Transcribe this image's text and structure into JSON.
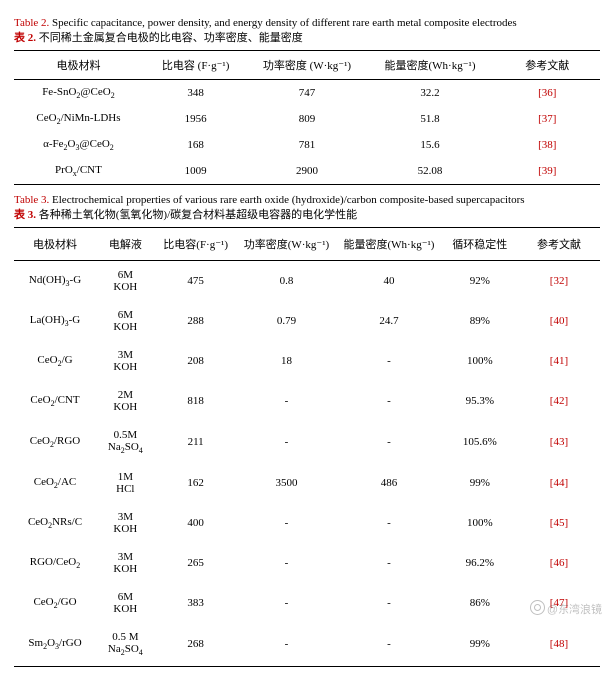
{
  "table2": {
    "caption_en_label": "Table 2.",
    "caption_en": " Specific capacitance, power density, and energy density of different rare earth metal composite electrodes",
    "caption_zh_label": "表 2.",
    "caption_zh": " 不同稀土金属复合电极的比电容、功率密度、能量密度",
    "headers": {
      "material": "电极材料",
      "cap": "比电容 (F·g⁻¹)",
      "power": "功率密度 (W·kg⁻¹)",
      "energy": "能量密度(Wh·kg⁻¹)",
      "ref": "参考文献"
    },
    "rows": [
      {
        "material_html": "Fe-SnO<sub>2</sub>@CeO<sub>2</sub>",
        "cap": "348",
        "power": "747",
        "energy": "32.2",
        "ref": "[36]"
      },
      {
        "material_html": "CeO<sub>2</sub>/NiMn-LDHs",
        "cap": "1956",
        "power": "809",
        "energy": "51.8",
        "ref": "[37]"
      },
      {
        "material_html": "α-Fe<sub>2</sub>O<sub>3</sub>@CeO<sub>2</sub>",
        "cap": "168",
        "power": "781",
        "energy": "15.6",
        "ref": "[38]"
      },
      {
        "material_html": "PrO<sub>x</sub>/CNT",
        "cap": "1009",
        "power": "2900",
        "energy": "52.08",
        "ref": "[39]"
      }
    ]
  },
  "table3": {
    "caption_en_label": "Table 3.",
    "caption_en": " Electrochemical properties of various rare earth oxide (hydroxide)/carbon composite-based supercapacitors",
    "caption_zh_label": "表 3.",
    "caption_zh": " 各种稀土氧化物(氢氧化物)/碳复合材料基超级电容器的电化学性能",
    "headers": {
      "material": "电极材料",
      "electrolyte": "电解液",
      "cap": "比电容(F·g⁻¹)",
      "power": "功率密度(W·kg⁻¹)",
      "energy": "能量密度(Wh·kg⁻¹)",
      "cycle": "循环稳定性",
      "ref": "参考文献"
    },
    "rows": [
      {
        "material_html": "Nd(OH)<sub>3</sub>-G",
        "elec_html": "6M<br>KOH",
        "cap": "475",
        "power": "0.8",
        "energy": "40",
        "cycle": "92%",
        "ref": "[32]"
      },
      {
        "material_html": "La(OH)<sub>3</sub>-G",
        "elec_html": "6M<br>KOH",
        "cap": "288",
        "power": "0.79",
        "energy": "24.7",
        "cycle": "89%",
        "ref": "[40]"
      },
      {
        "material_html": "CeO<sub>2</sub>/G",
        "elec_html": "3M<br>KOH",
        "cap": "208",
        "power": "18",
        "energy": "-",
        "cycle": "100%",
        "ref": "[41]"
      },
      {
        "material_html": "CeO<sub>2</sub>/CNT",
        "elec_html": "2M<br>KOH",
        "cap": "818",
        "power": "-",
        "energy": "-",
        "cycle": "95.3%",
        "ref": "[42]"
      },
      {
        "material_html": "CeO<sub>2</sub>/RGO",
        "elec_html": "0.5M<br>Na<sub>2</sub>SO<sub>4</sub>",
        "cap": "211",
        "power": "-",
        "energy": "-",
        "cycle": "105.6%",
        "ref": "[43]"
      },
      {
        "material_html": "CeO<sub>2</sub>/AC",
        "elec_html": "1M<br>HCl",
        "cap": "162",
        "power": "3500",
        "energy": "486",
        "cycle": "99%",
        "ref": "[44]"
      },
      {
        "material_html": "CeO<sub>2</sub>NRs/C",
        "elec_html": "3M<br>KOH",
        "cap": "400",
        "power": "-",
        "energy": "-",
        "cycle": "100%",
        "ref": "[45]"
      },
      {
        "material_html": "RGO/CeO<sub>2</sub>",
        "elec_html": "3M<br>KOH",
        "cap": "265",
        "power": "-",
        "energy": "-",
        "cycle": "96.2%",
        "ref": "[46]"
      },
      {
        "material_html": "CeO<sub>2</sub>/GO",
        "elec_html": "6M<br>KOH",
        "cap": "383",
        "power": "-",
        "energy": "-",
        "cycle": "86%",
        "ref": "[47]"
      },
      {
        "material_html": "Sm<sub>2</sub>O<sub>3</sub>/rGO",
        "elec_html": "0.5 M<br>Na<sub>2</sub>SO<sub>4</sub>",
        "cap": "268",
        "power": "-",
        "energy": "-",
        "cycle": "99%",
        "ref": "[48]"
      }
    ]
  },
  "watermark": "@东湾浪镜",
  "colors": {
    "accent": "#c00000",
    "text": "#000000",
    "bg": "#ffffff"
  }
}
